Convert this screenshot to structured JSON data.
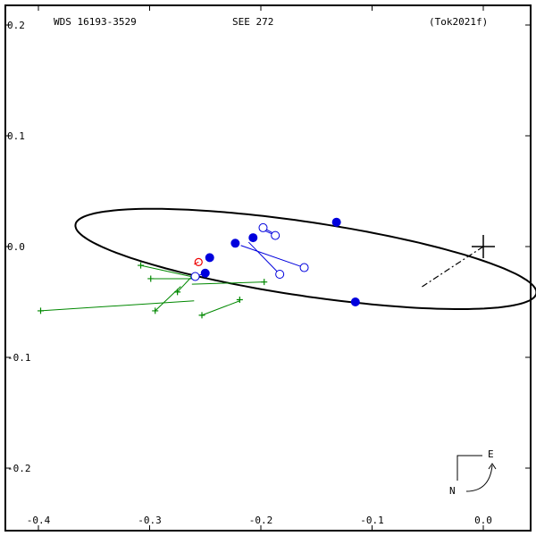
{
  "header": {
    "left": "WDS 16193-3529",
    "center": "SEE 272",
    "right": "(Tok2021f)"
  },
  "compass": {
    "east": "E",
    "north": "N"
  },
  "chart_data": {
    "type": "scatter",
    "title": "",
    "xlabel": "",
    "ylabel": "",
    "x_reversed": true,
    "xlim": [
      0.06,
      -0.44
    ],
    "ylim": [
      -0.255,
      0.22
    ],
    "xticks": [
      0.0,
      -0.1,
      -0.2,
      -0.3,
      -0.4
    ],
    "xtick_labels": [
      "0.0",
      "-0.1",
      "-0.2",
      "-0.3",
      "-0.4"
    ],
    "yticks": [
      0.2,
      0.1,
      0.0,
      -0.1,
      -0.2
    ],
    "ytick_labels": [
      "0.2",
      "0.1",
      "0.0",
      "-0.1",
      "-0.2"
    ],
    "grid": false,
    "primary": {
      "x": 0.0,
      "y": 0.0
    },
    "orbit": {
      "center": [
        -0.1595,
        -0.0112
      ],
      "semi_axis_major": 0.2095,
      "semi_axis_minor": 0.0334,
      "rotation_deg": -8.5
    },
    "line_of_nodes": [
      [
        0.0,
        0.0
      ],
      [
        -0.057,
        -0.0375
      ]
    ],
    "filled_points": [
      [
        -0.132,
        0.022
      ],
      [
        -0.207,
        0.008
      ],
      [
        -0.223,
        0.003
      ],
      [
        -0.246,
        -0.01
      ],
      [
        -0.25,
        -0.024
      ],
      [
        -0.115,
        -0.05
      ]
    ],
    "open_points": [
      {
        "obs": [
          -0.198,
          0.017
        ],
        "calc": [
          -0.187,
          0.011
        ]
      },
      {
        "obs": [
          -0.187,
          0.01
        ],
        "calc": [
          -0.2,
          0.016
        ]
      },
      {
        "obs": [
          -0.161,
          -0.019
        ],
        "calc": [
          -0.218,
          0.001
        ]
      },
      {
        "obs": [
          -0.183,
          -0.025
        ],
        "calc": [
          -0.211,
          0.004
        ]
      },
      {
        "obs": [
          -0.259,
          -0.027
        ],
        "calc": [
          -0.25,
          -0.024
        ]
      }
    ],
    "plus_points": [
      {
        "obs": [
          -0.308,
          -0.017
        ],
        "calc": [
          -0.263,
          -0.027
        ]
      },
      {
        "obs": [
          -0.299,
          -0.029
        ],
        "calc": [
          -0.262,
          -0.029
        ]
      },
      {
        "obs": [
          -0.398,
          -0.058
        ],
        "calc": [
          -0.26,
          -0.049
        ]
      },
      {
        "obs": [
          -0.295,
          -0.058
        ],
        "calc": [
          -0.272,
          -0.036
        ]
      },
      {
        "obs": [
          -0.275,
          -0.041
        ],
        "calc": [
          -0.262,
          -0.027
        ]
      },
      {
        "obs": [
          -0.253,
          -0.062
        ],
        "calc": [
          -0.219,
          -0.049
        ]
      },
      {
        "obs": [
          -0.219,
          -0.048
        ],
        "calc": [
          -0.219,
          -0.048
        ]
      },
      {
        "obs": [
          -0.197,
          -0.032
        ],
        "calc": [
          -0.262,
          -0.034
        ]
      }
    ],
    "red_points": [
      {
        "obs": [
          -0.256,
          -0.014
        ],
        "calc": [
          -0.26,
          -0.016
        ]
      }
    ],
    "colors": {
      "orbit": "#000000",
      "filled": "#0000dd",
      "open": "#0000dd",
      "plus": "#008800",
      "red": "#ee0000"
    }
  }
}
